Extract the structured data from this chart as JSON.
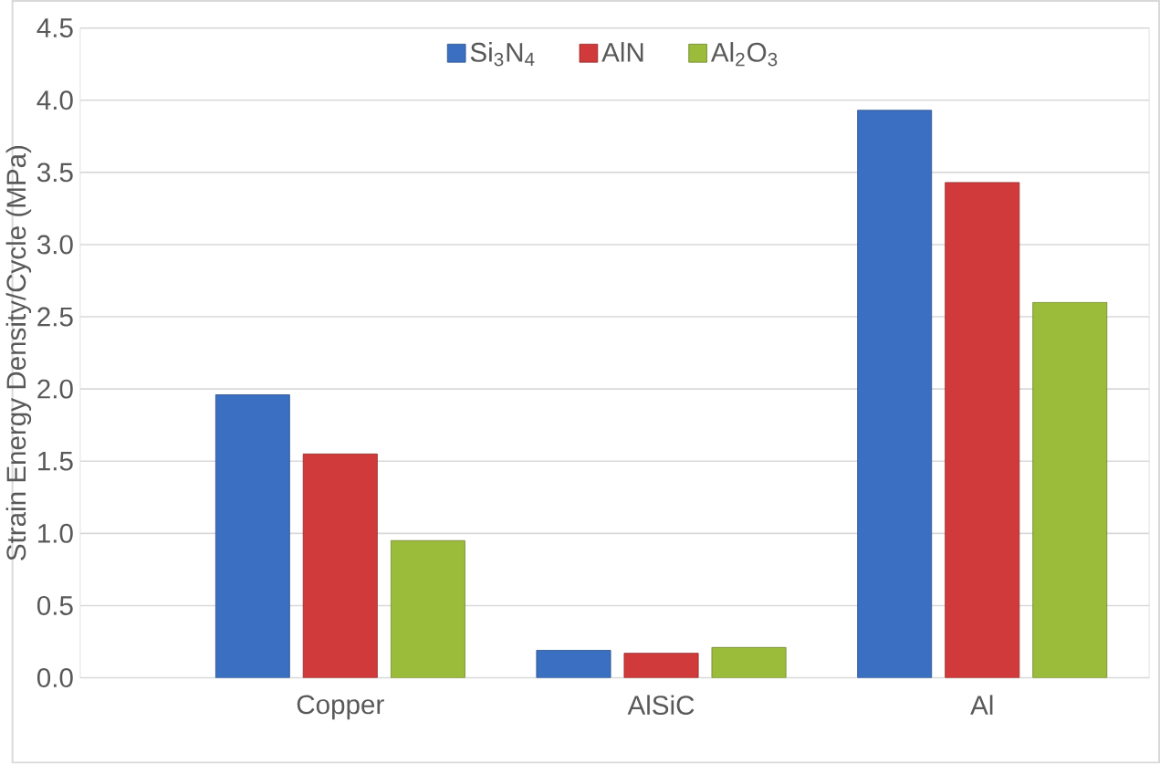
{
  "chart_data": {
    "type": "bar",
    "ylabel": "Strain Energy Density/Cycle  (MPa)",
    "categories": [
      "Copper",
      "AlSiC",
      "Al"
    ],
    "series": [
      {
        "name": "Si$_{3}$N$_{4}$",
        "color": "#3a6fc1",
        "values": [
          1.96,
          0.19,
          3.93
        ]
      },
      {
        "name": "AlN",
        "color": "#d13a3a",
        "values": [
          1.55,
          0.17,
          3.43
        ]
      },
      {
        "name": "Al$_{2}$O$_{3}$",
        "color": "#9bbb3b",
        "values": [
          0.95,
          0.21,
          2.6
        ]
      }
    ],
    "ylim": [
      0,
      4.5
    ],
    "yticks": [
      {
        "value": 0,
        "label": "0.0"
      },
      {
        "value": 0.5,
        "label": "0.5"
      },
      {
        "value": 1,
        "label": "1.0"
      },
      {
        "value": 1.5,
        "label": "1.5"
      },
      {
        "value": 2,
        "label": "2.0"
      },
      {
        "value": 2.5,
        "label": "2.5"
      },
      {
        "value": 3,
        "label": "3.0"
      },
      {
        "value": 3.5,
        "label": "3.5"
      },
      {
        "value": 4,
        "label": "4.0"
      },
      {
        "value": 4.5,
        "label": "4.5"
      }
    ],
    "grid": "y",
    "legend": "top"
  }
}
